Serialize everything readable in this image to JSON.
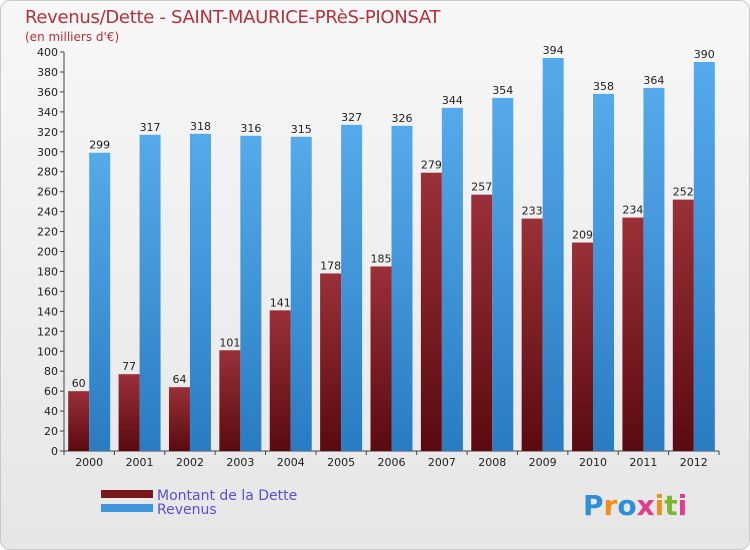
{
  "chart_data": {
    "type": "bar",
    "title": "Revenus/Dette - SAINT-MAURICE-PRèS-PIONSAT",
    "subtitle": "(en milliers d'€)",
    "categories": [
      "2000",
      "2001",
      "2002",
      "2003",
      "2004",
      "2005",
      "2006",
      "2007",
      "2008",
      "2009",
      "2010",
      "2011",
      "2012"
    ],
    "series": [
      {
        "name": "Montant de la Dette",
        "color": "#7a1a1f",
        "values": [
          60,
          77,
          64,
          101,
          141,
          178,
          185,
          279,
          257,
          233,
          209,
          234,
          252
        ]
      },
      {
        "name": "Revenus",
        "color": "#3f95dc",
        "values": [
          299,
          317,
          318,
          316,
          315,
          327,
          326,
          344,
          354,
          394,
          358,
          364,
          390
        ]
      }
    ],
    "ylim": [
      0,
      400
    ],
    "ytick_step": 20,
    "xlabel": "",
    "ylabel": "",
    "grid": false,
    "legend": "bottom-left"
  },
  "logo": {
    "text": "Proxiti",
    "letters": [
      "P",
      "r",
      "o",
      "x",
      "i",
      "t",
      "i"
    ],
    "colors": [
      "#2f8fd6",
      "#f28c1a",
      "#2f8fd6",
      "#e23b8a",
      "#f28c1a",
      "#7cb82f",
      "#e23b8a"
    ]
  }
}
